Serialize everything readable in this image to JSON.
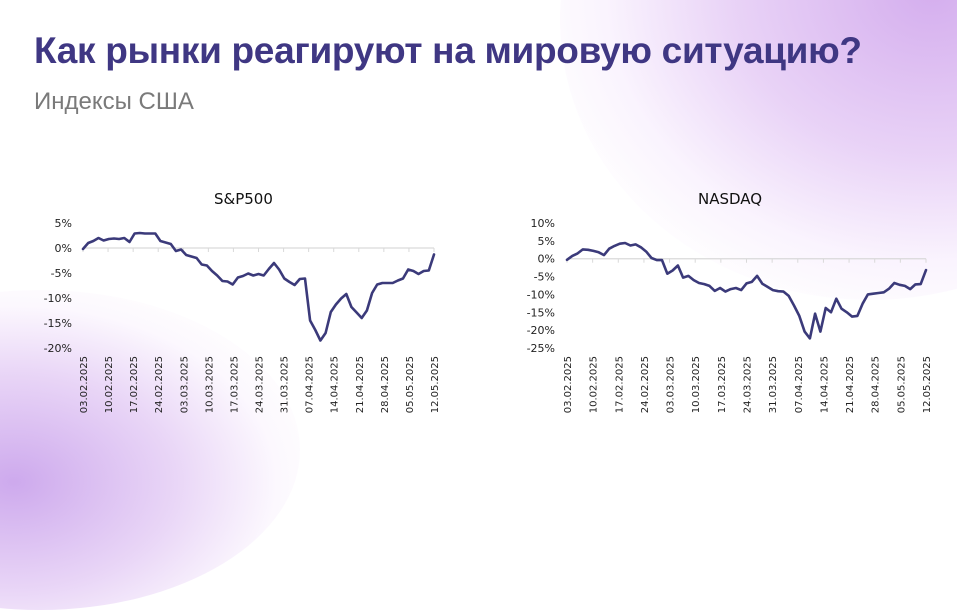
{
  "header": {
    "title": "Как рынки реагируют на мировую ситуацию?",
    "subtitle": "Индексы США"
  },
  "colors": {
    "title": "#3f3783",
    "subtitle": "#7a7a7a",
    "line": "#3b3a7a",
    "axis": "#d9d9d9",
    "accent_gradient": "#cda0eb"
  },
  "chart_data": [
    {
      "type": "line",
      "title": "S&P500",
      "xlabel": "",
      "ylabel": "",
      "ylim": [
        -20,
        5
      ],
      "y_ticks": [
        "5%",
        "0%",
        "-5%",
        "-10%",
        "-15%",
        "-20%"
      ],
      "x_ticks": [
        "03.02.2025",
        "10.02.2025",
        "17.02.2025",
        "24.02.2025",
        "03.03.2025",
        "10.03.2025",
        "17.03.2025",
        "24.03.2025",
        "31.03.2025",
        "07.04.2025",
        "14.04.2025",
        "21.04.2025",
        "28.04.2025",
        "05.05.2025",
        "12.05.2025"
      ],
      "grid": false,
      "series": [
        {
          "name": "S&P500",
          "x": [
            "03.02",
            "04.02",
            "05.02",
            "06.02",
            "07.02",
            "10.02",
            "11.02",
            "12.02",
            "13.02",
            "14.02",
            "18.02",
            "19.02",
            "20.02",
            "21.02",
            "24.02",
            "25.02",
            "26.02",
            "27.02",
            "28.02",
            "03.03",
            "04.03",
            "05.03",
            "06.03",
            "07.03",
            "10.03",
            "11.03",
            "12.03",
            "13.03",
            "14.03",
            "17.03",
            "18.03",
            "19.03",
            "20.03",
            "21.03",
            "24.03",
            "25.03",
            "26.03",
            "27.03",
            "28.03",
            "31.03",
            "01.04",
            "02.04",
            "03.04",
            "04.04",
            "07.04",
            "08.04",
            "09.04",
            "10.04",
            "11.04",
            "14.04",
            "15.04",
            "16.04",
            "17.04",
            "21.04",
            "22.04",
            "23.04",
            "24.04",
            "25.04",
            "28.04",
            "29.04",
            "30.04",
            "01.05",
            "02.05",
            "05.05",
            "06.05",
            "07.05",
            "08.05",
            "09.05",
            "12.05"
          ],
          "values": [
            -0.2,
            1.0,
            1.4,
            2.0,
            1.5,
            1.8,
            1.9,
            1.8,
            2.0,
            1.2,
            2.9,
            3.0,
            2.9,
            2.9,
            2.9,
            1.4,
            1.1,
            0.8,
            -0.6,
            -0.3,
            -1.4,
            -1.7,
            -2.0,
            -3.3,
            -3.5,
            -4.6,
            -5.5,
            -6.6,
            -6.7,
            -7.3,
            -5.9,
            -5.6,
            -5.1,
            -5.5,
            -5.2,
            -5.5,
            -4.2,
            -3.0,
            -4.3,
            -6.1,
            -6.8,
            -7.4,
            -6.2,
            -6.1,
            -14.5,
            -16.4,
            -18.5,
            -17.0,
            -12.8,
            -11.3,
            -10.1,
            -9.2,
            -11.8,
            -12.9,
            -14.0,
            -12.5,
            -9.0,
            -7.3,
            -7.0,
            -7.0,
            -7.0,
            -6.5,
            -6.1,
            -4.3,
            -4.6,
            -5.2,
            -4.6,
            -4.5,
            -1.3
          ]
        }
      ]
    },
    {
      "type": "line",
      "title": "NASDAQ",
      "xlabel": "",
      "ylabel": "",
      "ylim": [
        -25,
        10
      ],
      "y_ticks": [
        "10%",
        "5%",
        "0%",
        "-5%",
        "-10%",
        "-15%",
        "-20%",
        "-25%"
      ],
      "x_ticks": [
        "03.02.2025",
        "10.02.2025",
        "17.02.2025",
        "24.02.2025",
        "03.03.2025",
        "10.03.2025",
        "17.03.2025",
        "24.03.2025",
        "31.03.2025",
        "07.04.2025",
        "14.04.2025",
        "21.04.2025",
        "28.04.2025",
        "05.05.2025",
        "12.05.2025"
      ],
      "grid": false,
      "series": [
        {
          "name": "NASDAQ",
          "x": [
            "03.02",
            "04.02",
            "05.02",
            "06.02",
            "07.02",
            "10.02",
            "11.02",
            "12.02",
            "13.02",
            "14.02",
            "18.02",
            "19.02",
            "20.02",
            "21.02",
            "24.02",
            "25.02",
            "26.02",
            "27.02",
            "28.02",
            "03.03",
            "04.03",
            "05.03",
            "06.03",
            "07.03",
            "10.03",
            "11.03",
            "12.03",
            "13.03",
            "14.03",
            "17.03",
            "18.03",
            "19.03",
            "20.03",
            "21.03",
            "24.03",
            "25.03",
            "26.03",
            "27.03",
            "28.03",
            "31.03",
            "01.04",
            "02.04",
            "03.04",
            "04.04",
            "07.04",
            "08.04",
            "09.04",
            "10.04",
            "11.04",
            "14.04",
            "15.04",
            "16.04",
            "17.04",
            "21.04",
            "22.04",
            "23.04",
            "24.04",
            "25.04",
            "28.04",
            "29.04",
            "30.04",
            "01.05",
            "02.05",
            "05.05",
            "06.05",
            "07.05",
            "08.05",
            "09.05",
            "12.05"
          ],
          "values": [
            -0.3,
            0.8,
            1.5,
            2.6,
            2.5,
            2.2,
            1.8,
            1.0,
            2.8,
            3.6,
            4.2,
            4.4,
            3.7,
            4.0,
            3.2,
            2.0,
            0.2,
            -0.4,
            -0.4,
            -4.2,
            -3.3,
            -1.9,
            -5.3,
            -4.8,
            -6.0,
            -6.8,
            -7.1,
            -7.6,
            -9.0,
            -8.2,
            -9.2,
            -8.5,
            -8.2,
            -8.8,
            -6.9,
            -6.5,
            -4.8,
            -7.0,
            -7.9,
            -8.8,
            -9.1,
            -9.2,
            -10.4,
            -13.1,
            -16.0,
            -20.4,
            -22.3,
            -15.4,
            -20.4,
            -13.8,
            -15.0,
            -11.2,
            -14.0,
            -15.0,
            -16.2,
            -16.0,
            -12.6,
            -10.0,
            -9.8,
            -9.6,
            -9.4,
            -8.4,
            -6.8,
            -7.3,
            -7.6,
            -8.5,
            -7.2,
            -7.1,
            -3.2
          ]
        }
      ]
    }
  ]
}
